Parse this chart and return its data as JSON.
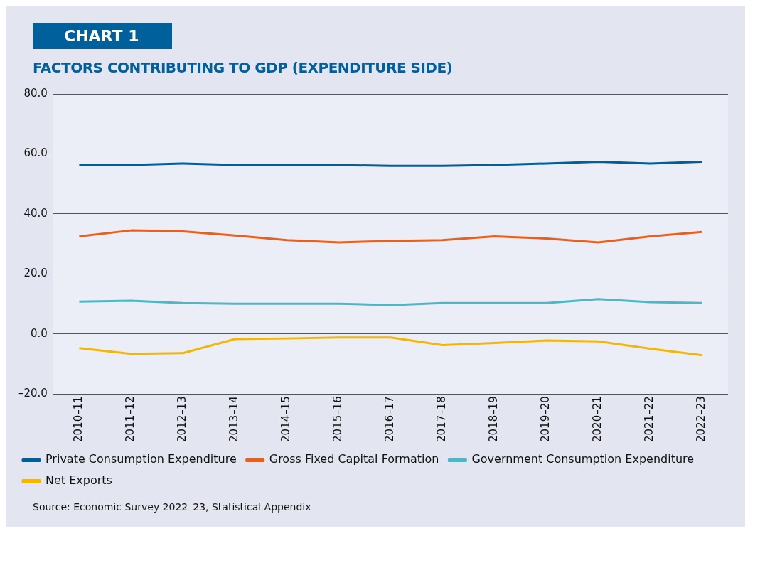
{
  "chart_data": {
    "type": "line",
    "title": "CHART 1",
    "subtitle": "FACTORS CONTRIBUTING TO GDP (EXPENDITURE SIDE)",
    "categories": [
      "2010–11",
      "2011–12",
      "2012–13",
      "2013–14",
      "2014–15",
      "2015–16",
      "2016–17",
      "2017–18",
      "2018–19",
      "2019–20",
      "2020–21",
      "2021–22",
      "2022–23"
    ],
    "series": [
      {
        "name": "Private Consumption Expenditure",
        "color": "#005f96",
        "values": [
          56.3,
          56.3,
          56.8,
          56.3,
          56.3,
          56.3,
          56.0,
          56.0,
          56.3,
          56.8,
          57.4,
          56.8,
          57.4
        ]
      },
      {
        "name": "Gross Fixed Capital Formation",
        "color": "#e8601c",
        "values": [
          32.5,
          34.5,
          34.2,
          32.8,
          31.3,
          30.5,
          31.0,
          31.3,
          32.5,
          31.8,
          30.5,
          32.5,
          34.0
        ]
      },
      {
        "name": "Government Consumption Expenditure",
        "color": "#4bb8c6",
        "values": [
          10.8,
          11.1,
          10.3,
          10.1,
          10.1,
          10.1,
          9.6,
          10.3,
          10.3,
          10.3,
          11.6,
          10.6,
          10.3
        ]
      },
      {
        "name": "Net Exports",
        "color": "#f2b705",
        "values": [
          -4.7,
          -6.6,
          -6.4,
          -1.7,
          -1.5,
          -1.2,
          -1.2,
          -3.7,
          -3.0,
          -2.2,
          -2.5,
          -4.9,
          -7.1
        ]
      }
    ],
    "ylim": [
      -20,
      80
    ],
    "yticks": [
      {
        "value": -20,
        "label": "–20.0"
      },
      {
        "value": 0,
        "label": "0.0"
      },
      {
        "value": 20,
        "label": "20.0"
      },
      {
        "value": 40,
        "label": "40.0"
      },
      {
        "value": 60,
        "label": "60.0"
      },
      {
        "value": 80,
        "label": "80.0"
      }
    ],
    "grid": "y",
    "legend": "bottom",
    "marker": "none",
    "line_style": "solid",
    "annotations": [
      "Source: Economic Survey 2022–23, Statistical Appendix"
    ]
  }
}
